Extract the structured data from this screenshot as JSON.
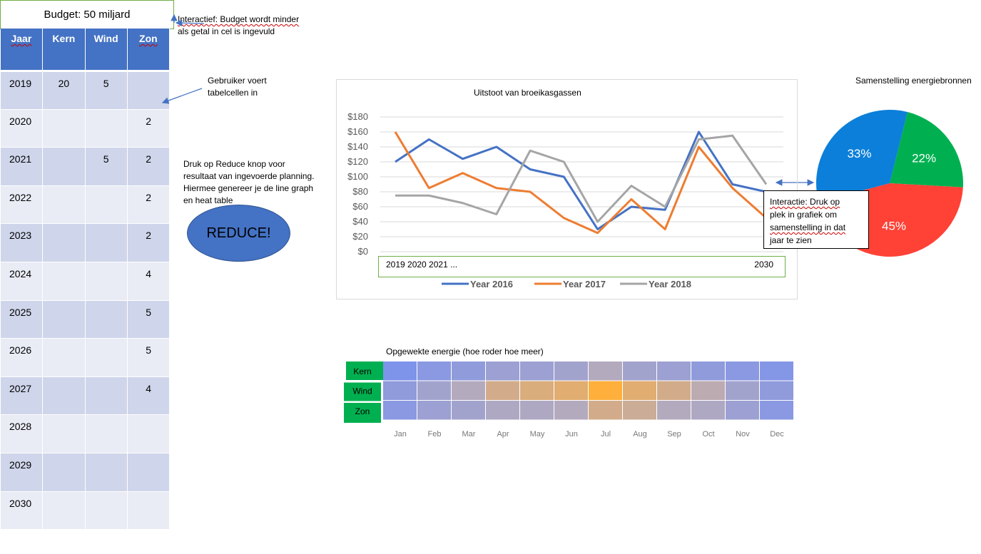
{
  "budget": {
    "label": "Budget: 50 miljard"
  },
  "notes": {
    "budget_note": [
      "Interactief: Budget wordt minder",
      "als getal in cel is ingevuld"
    ],
    "table_note": [
      "Gebruiker voert",
      "tabelcellen in"
    ],
    "reduce_note": [
      "Druk op Reduce knop voor",
      "resultaat van ingevoerde planning.",
      "Hiermee genereer je de line graph",
      "en heat table"
    ],
    "chart_interaction": [
      "Interactie: Druk op",
      "plek in grafiek om",
      "samenstelling in dat",
      "jaar te zien"
    ]
  },
  "table": {
    "headers": [
      "Jaar",
      "Kern",
      "Wind",
      "Zon"
    ],
    "rows": [
      [
        "2019",
        "20",
        "5",
        ""
      ],
      [
        "2020",
        "",
        "",
        "2"
      ],
      [
        "2021",
        "",
        "5",
        "2"
      ],
      [
        "2022",
        "",
        "",
        "2"
      ],
      [
        "2023",
        "",
        "",
        "2"
      ],
      [
        "2024",
        "",
        "",
        "4"
      ],
      [
        "2025",
        "",
        "",
        "5"
      ],
      [
        "2026",
        "",
        "",
        "5"
      ],
      [
        "2027",
        "",
        "",
        "4"
      ],
      [
        "2028",
        "",
        "",
        ""
      ],
      [
        "2029",
        "",
        "",
        ""
      ],
      [
        "2030",
        "",
        "",
        ""
      ]
    ]
  },
  "reduce_button": {
    "label": "REDUCE!"
  },
  "colors": {
    "accent": "#4472c4",
    "green": "#70ad47",
    "table_odd": "#cfd5ea",
    "table_even": "#e9ebf5"
  },
  "chart_data": [
    {
      "type": "line",
      "title": "Uitstoot van broeikasgassen",
      "x_range_label_start": "2019 2020 2021   ...",
      "x_range_label_end": "2030",
      "yticks": [
        "$0",
        "$20",
        "$40",
        "$60",
        "$80",
        "$100",
        "$120",
        "$140",
        "$160",
        "$180"
      ],
      "ylim": [
        0,
        180
      ],
      "grid": true,
      "legend": "bottom",
      "series": [
        {
          "name": "Year 2016",
          "color": "#4472c4",
          "values": [
            120,
            150,
            124,
            140,
            110,
            100,
            30,
            60,
            56,
            160,
            90,
            80
          ]
        },
        {
          "name": "Year 2017",
          "color": "#ed7d31",
          "values": [
            160,
            85,
            105,
            85,
            80,
            45,
            25,
            70,
            30,
            140,
            85,
            45
          ]
        },
        {
          "name": "Year 2018",
          "color": "#a5a5a5",
          "values": [
            75,
            75,
            65,
            50,
            135,
            120,
            40,
            88,
            60,
            150,
            155,
            90
          ]
        }
      ]
    },
    {
      "type": "pie",
      "title": "Samenstelling energiebronnen",
      "slices": [
        {
          "label": "22%",
          "value": 22,
          "color": "#00b050"
        },
        {
          "label": "45%",
          "value": 45,
          "color": "#ff4136"
        },
        {
          "label": "33%",
          "value": 33,
          "color": "#0b7fd9"
        }
      ]
    },
    {
      "type": "heatmap",
      "title": "Opgewekte energie (hoe roder hoe meer)",
      "rows": [
        "Kern",
        "Wind",
        "Zon"
      ],
      "columns": [
        "Jan",
        "Feb",
        "Mar",
        "Apr",
        "May",
        "Jun",
        "Jul",
        "Aug",
        "Sep",
        "Oct",
        "Nov",
        "Dec"
      ],
      "values": [
        [
          0.05,
          0.15,
          0.2,
          0.3,
          0.3,
          0.35,
          0.5,
          0.35,
          0.3,
          0.2,
          0.15,
          0.1
        ],
        [
          0.2,
          0.35,
          0.5,
          0.7,
          0.75,
          0.8,
          1.0,
          0.8,
          0.7,
          0.55,
          0.35,
          0.2
        ],
        [
          0.15,
          0.3,
          0.35,
          0.45,
          0.45,
          0.5,
          0.7,
          0.65,
          0.5,
          0.45,
          0.3,
          0.15
        ]
      ]
    }
  ]
}
